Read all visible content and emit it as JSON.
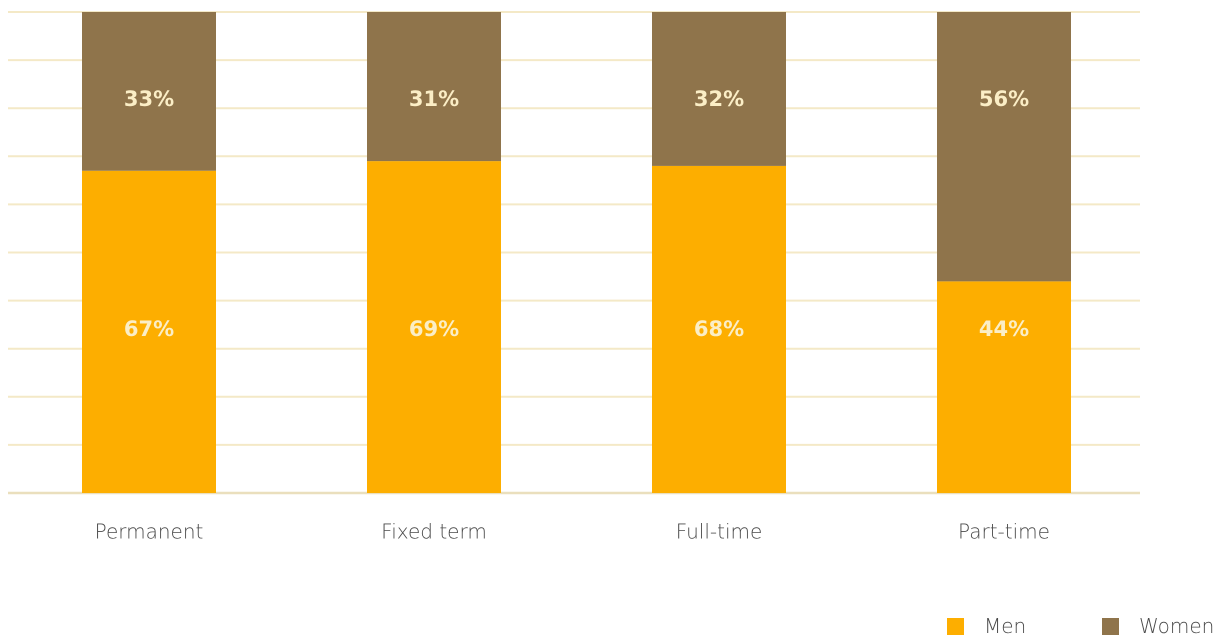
{
  "chart_data": {
    "type": "bar",
    "stacked": true,
    "categories": [
      "Permanent",
      "Fixed term",
      "Full-time",
      "Part-time"
    ],
    "series": [
      {
        "name": "Men",
        "values": [
          67,
          69,
          68,
          44
        ],
        "labels": [
          "67%",
          "69%",
          "68%",
          "44%"
        ],
        "color": "#fdae00"
      },
      {
        "name": "Women",
        "values": [
          33,
          31,
          32,
          56
        ],
        "labels": [
          "33%",
          "31%",
          "32%",
          "56%"
        ],
        "color": "#8f744b"
      }
    ],
    "ylim": [
      0,
      100
    ],
    "grid": true,
    "grid_color": "#f4e9c7",
    "legend_position": "bottom-right"
  }
}
